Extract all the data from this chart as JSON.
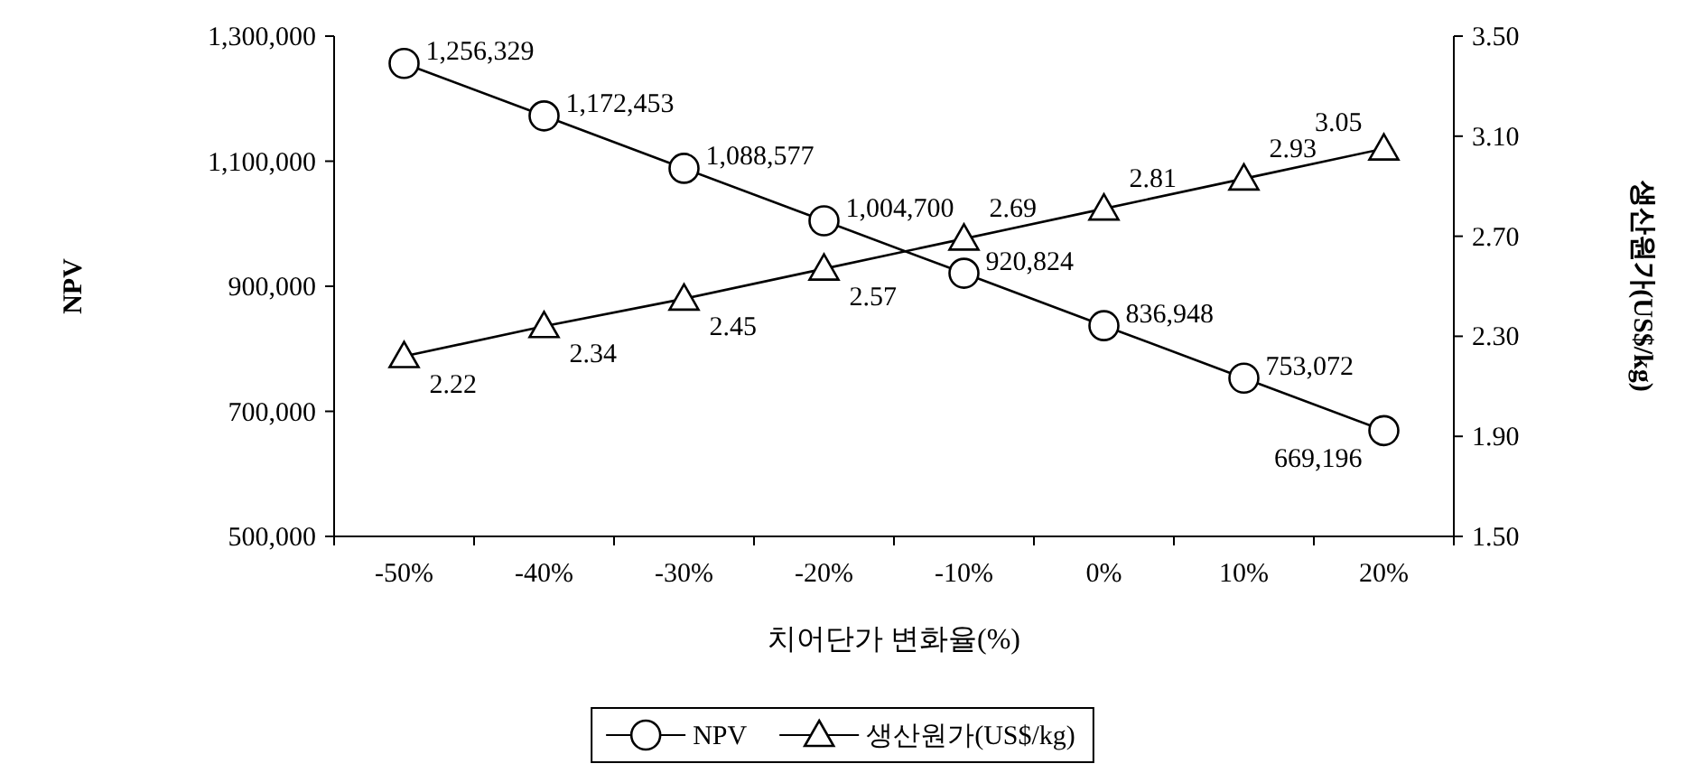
{
  "chart_data": {
    "type": "line",
    "xlabel": "치어단가 변화율(%)",
    "ylabel": "NPV",
    "y2label": "생산원가(US$/kg)",
    "categories": [
      "-50%",
      "-40%",
      "-30%",
      "-20%",
      "-10%",
      "0%",
      "10%",
      "20%"
    ],
    "series": [
      {
        "name": "NPV",
        "color": "#000000",
        "marker": "circle",
        "values": [
          1256329,
          1172453,
          1088577,
          1004700,
          920824,
          836948,
          753072,
          669196
        ],
        "value_labels": [
          "1,256,329",
          "1,172,453",
          "1,088,577",
          "1,004,700",
          "920,824",
          "836,948",
          "753,072",
          "669,196"
        ]
      },
      {
        "name": "생산원가(US$/kg)",
        "color": "#000000",
        "marker": "triangle",
        "axis": "y2",
        "values": [
          2.22,
          2.34,
          2.45,
          2.57,
          2.69,
          2.81,
          2.93,
          3.05
        ],
        "value_labels": [
          "2.22",
          "2.34",
          "2.45",
          "2.57",
          "2.69",
          "2.81",
          "2.93",
          "3.05"
        ]
      }
    ],
    "ylim": [
      500000,
      1300000
    ],
    "yticks": [
      {
        "value": 500000,
        "label": "500,000"
      },
      {
        "value": 700000,
        "label": "700,000"
      },
      {
        "value": 900000,
        "label": "900,000"
      },
      {
        "value": 1100000,
        "label": "1,100,000"
      },
      {
        "value": 1300000,
        "label": "1,300,000"
      }
    ],
    "y2lim": [
      1.5,
      3.5
    ],
    "y2ticks": [
      {
        "value": 1.5,
        "label": "1.50"
      },
      {
        "value": 1.9,
        "label": "1.90"
      },
      {
        "value": 2.3,
        "label": "2.30"
      },
      {
        "value": 2.7,
        "label": "2.70"
      },
      {
        "value": 3.1,
        "label": "3.10"
      },
      {
        "value": 3.5,
        "label": "3.50"
      }
    ],
    "legend": "bottom",
    "grid": false,
    "line_style": "solid"
  }
}
